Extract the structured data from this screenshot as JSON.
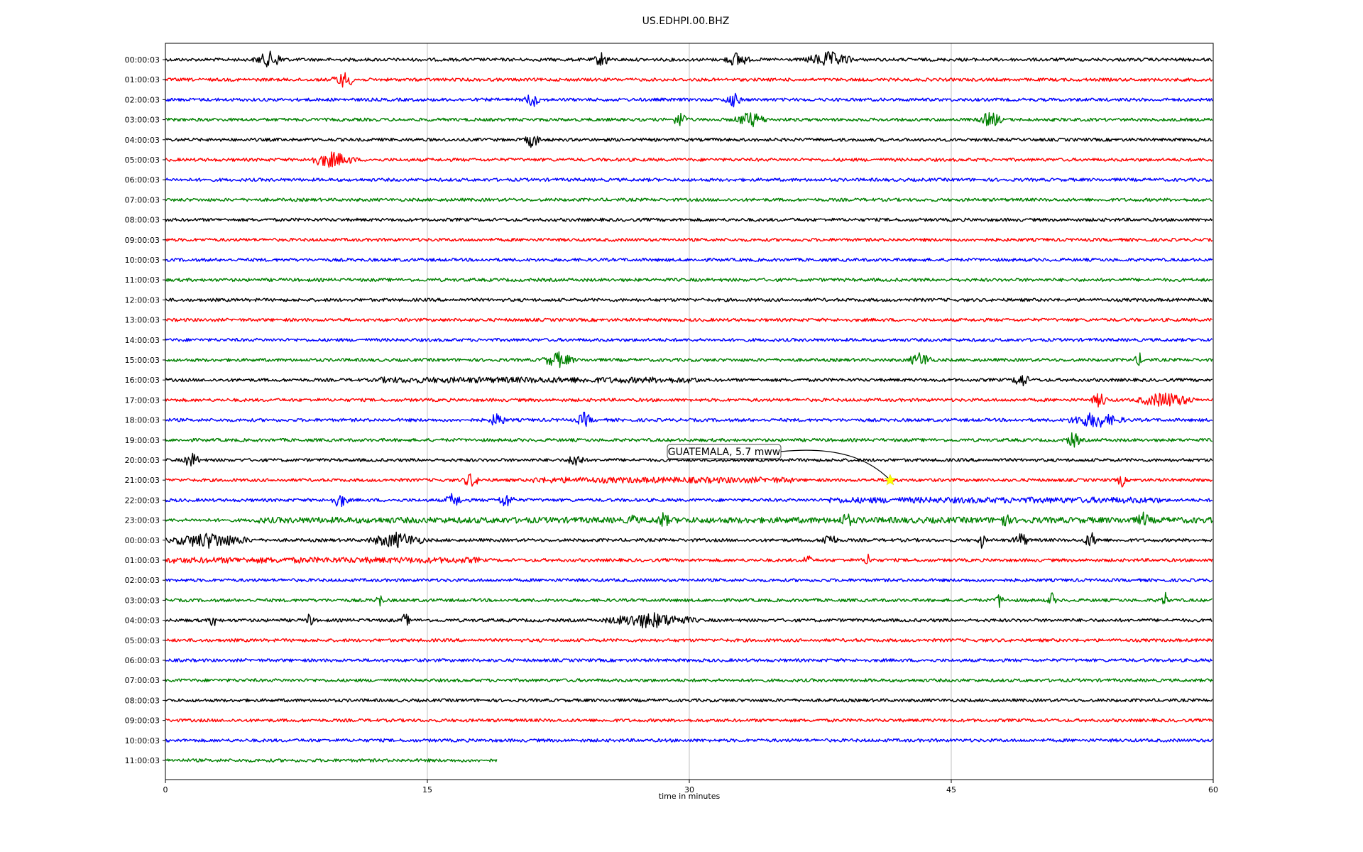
{
  "chart_data": {
    "type": "line",
    "title": "US.EDHPI.00.BHZ",
    "xlabel": "time in minutes",
    "ylabel": "",
    "xlim": [
      0,
      60
    ],
    "x_ticks": [
      "0",
      "15",
      "30",
      "45",
      "60"
    ],
    "x_tick_values": [
      0,
      15,
      30,
      45,
      60
    ],
    "grid": "vertical",
    "colors": [
      "#000000",
      "#ff0000",
      "#0000ff",
      "#008000"
    ],
    "row_labels": [
      "00:00:03",
      "01:00:03",
      "02:00:03",
      "03:00:03",
      "04:00:03",
      "05:00:03",
      "06:00:03",
      "07:00:03",
      "08:00:03",
      "09:00:03",
      "10:00:03",
      "11:00:03",
      "12:00:03",
      "13:00:03",
      "14:00:03",
      "15:00:03",
      "16:00:03",
      "17:00:03",
      "18:00:03",
      "19:00:03",
      "20:00:03",
      "21:00:03",
      "22:00:03",
      "23:00:03",
      "00:00:03",
      "01:00:03",
      "02:00:03",
      "03:00:03",
      "04:00:03",
      "05:00:03",
      "06:00:03",
      "07:00:03",
      "08:00:03",
      "09:00:03",
      "10:00:03",
      "11:00:03"
    ],
    "last_row_end_minute": 19,
    "annotation": {
      "text": "GUATEMALA, 5.7 mww",
      "row_index": 21,
      "minute": 41.5,
      "marker": "star",
      "marker_color": "#ffff00"
    },
    "notable_signals": [
      {
        "row": 0,
        "segments": [
          [
            5,
            7
          ],
          [
            24.5,
            25.5
          ],
          [
            32,
            33.5
          ],
          [
            36.5,
            39.5
          ]
        ]
      },
      {
        "row": 1,
        "segments": [
          [
            9.5,
            11
          ]
        ]
      },
      {
        "row": 2,
        "segments": [
          [
            20.5,
            21.5
          ],
          [
            32,
            33
          ]
        ]
      },
      {
        "row": 3,
        "segments": [
          [
            29,
            30
          ],
          [
            32.5,
            34.5
          ],
          [
            46.5,
            48
          ]
        ]
      },
      {
        "row": 4,
        "segments": [
          [
            20.5,
            21.5
          ]
        ]
      },
      {
        "row": 5,
        "segments": [
          [
            8,
            11
          ]
        ]
      },
      {
        "row": 15,
        "segments": [
          [
            21.5,
            23.5
          ],
          [
            42.5,
            44
          ],
          [
            55.5,
            56
          ]
        ]
      },
      {
        "row": 16,
        "segments": [
          [
            12,
            30.5
          ],
          [
            48.5,
            49.5
          ]
        ]
      },
      {
        "row": 17,
        "segments": [
          [
            53,
            54
          ],
          [
            55.5,
            59
          ]
        ]
      },
      {
        "row": 18,
        "segments": [
          [
            18.5,
            19.5
          ],
          [
            23.5,
            24.5
          ],
          [
            51.5,
            55
          ]
        ]
      },
      {
        "row": 19,
        "segments": [
          [
            51.5,
            52.5
          ]
        ]
      },
      {
        "row": 20,
        "segments": [
          [
            1,
            2
          ],
          [
            23,
            24
          ]
        ]
      },
      {
        "row": 21,
        "segments": [
          [
            17,
            18
          ],
          [
            21,
            36
          ],
          [
            54.5,
            55
          ]
        ]
      },
      {
        "row": 22,
        "segments": [
          [
            9.5,
            10.5
          ],
          [
            16,
            17
          ],
          [
            19,
            20
          ],
          [
            38,
            57
          ]
        ]
      },
      {
        "row": 23,
        "segments": [
          [
            5,
            60
          ],
          [
            26.5,
            27
          ],
          [
            28,
            29
          ],
          [
            38.5,
            39.5
          ],
          [
            47.5,
            48.5
          ],
          [
            55.5,
            56.5
          ]
        ]
      },
      {
        "row": 24,
        "segments": [
          [
            0,
            5
          ],
          [
            11.5,
            15
          ],
          [
            37.5,
            38.5
          ],
          [
            46.5,
            47
          ],
          [
            48.5,
            49.5
          ],
          [
            52.5,
            53.5
          ]
        ]
      },
      {
        "row": 25,
        "segments": [
          [
            0,
            18
          ],
          [
            36.5,
            37
          ],
          [
            40,
            40.5
          ]
        ]
      },
      {
        "row": 27,
        "segments": [
          [
            12,
            12.5
          ],
          [
            47.5,
            48
          ],
          [
            50.5,
            51
          ],
          [
            57,
            57.5
          ]
        ]
      },
      {
        "row": 28,
        "segments": [
          [
            2.5,
            3
          ],
          [
            8,
            8.5
          ],
          [
            13.5,
            14
          ],
          [
            25,
            30.5
          ]
        ]
      }
    ]
  }
}
